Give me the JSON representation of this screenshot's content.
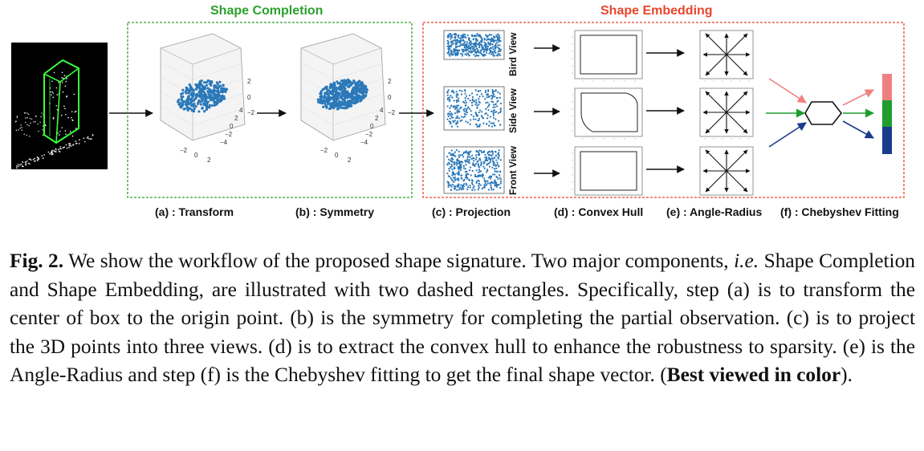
{
  "sections": {
    "completion_title": "Shape Completion",
    "embedding_title": "Shape Embedding"
  },
  "views": {
    "bird": "Bird View",
    "side": "Side View",
    "front": "Front View"
  },
  "steps": {
    "a": "(a) : Transform",
    "b": "(b) : Symmetry",
    "c": "(c) : Projection",
    "d": "(d) : Convex Hull",
    "e": "(e) : Angle-Radius",
    "f": "(f) : Chebyshev Fitting"
  },
  "plot3d_ticks": {
    "z": [
      "2",
      "0",
      "−2"
    ],
    "x": [
      "−2",
      "0",
      "2"
    ],
    "y": [
      "4",
      "2",
      "0",
      "−2",
      "−4"
    ]
  },
  "colors": {
    "completion": "#2ca02c",
    "embedding": "#e8452c",
    "points": "#2a78b8",
    "vector_top": "#f08080",
    "vector_mid": "#1e9e2e",
    "vector_bottom": "#1a3a8c"
  },
  "caption": {
    "fig_label": "Fig. 2.",
    "t1": " We show the workflow of the proposed shape signature. Two major components, ",
    "ie": "i.e.",
    "t2": " Shape Completion and Shape Embedding, are illustrated with two dashed rectangles. Specifically, step (a) is to transform the center of box to the origin point. (b) is the symmetry for completing the partial observation. (c) is to project the 3D points into three views. (d) is to extract the convex hull to enhance the robustness to sparsity. (e) is the Angle-Radius and step (f) is the Chebyshev fitting to get the final shape vector. (",
    "bold": "Best viewed in color",
    "t3": ")."
  }
}
